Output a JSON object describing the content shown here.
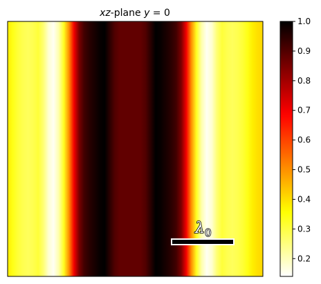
{
  "chart_data": {
    "type": "heatmap",
    "title_parts": {
      "plane_prefix": "xz",
      "plane_suffix": "-plane ",
      "condition_var": "y",
      "condition_op": " = ",
      "condition_val": "0"
    },
    "colormap": "hot_r",
    "colorbar": {
      "range": [
        0.14,
        1.0
      ],
      "ticks": [
        0.2,
        0.3,
        0.4,
        0.5,
        0.6,
        0.7,
        0.8,
        0.9,
        1.0
      ],
      "tick_labels": [
        "0.2",
        "0.3",
        "0.4",
        "0.5",
        "0.6",
        "0.7",
        "0.8",
        "0.9",
        "1.0"
      ]
    },
    "intensity_profile": {
      "x": [
        0.0,
        0.02,
        0.04,
        0.06,
        0.08,
        0.1,
        0.12,
        0.14,
        0.16,
        0.18,
        0.2,
        0.22,
        0.24,
        0.26,
        0.28,
        0.3,
        0.32,
        0.34,
        0.36,
        0.38,
        0.4,
        0.42,
        0.44,
        0.46,
        0.48,
        0.5,
        0.52,
        0.54,
        0.56,
        0.58,
        0.6,
        0.62,
        0.64,
        0.66,
        0.68,
        0.7,
        0.72,
        0.74,
        0.76,
        0.78,
        0.8,
        0.82,
        0.84,
        0.86,
        0.88,
        0.9,
        0.92,
        0.94,
        0.96,
        0.98,
        1.0
      ],
      "value": [
        0.38,
        0.34,
        0.31,
        0.29,
        0.28,
        0.29,
        0.31,
        0.26,
        0.18,
        0.15,
        0.21,
        0.33,
        0.5,
        0.7,
        0.85,
        0.92,
        0.95,
        0.97,
        0.99,
        1.0,
        0.95,
        0.9,
        0.88,
        0.88,
        0.88,
        0.88,
        0.88,
        0.9,
        0.95,
        1.0,
        0.99,
        0.97,
        0.95,
        0.92,
        0.85,
        0.7,
        0.5,
        0.33,
        0.21,
        0.15,
        0.18,
        0.26,
        0.31,
        0.29,
        0.28,
        0.29,
        0.31,
        0.34,
        0.38,
        0.4,
        0.41
      ]
    },
    "scalebar": {
      "label_symbol": "λ",
      "label_subscript": "0"
    },
    "axes": {
      "x_ticks_visible": false,
      "y_ticks_visible": false,
      "grid": false
    }
  }
}
